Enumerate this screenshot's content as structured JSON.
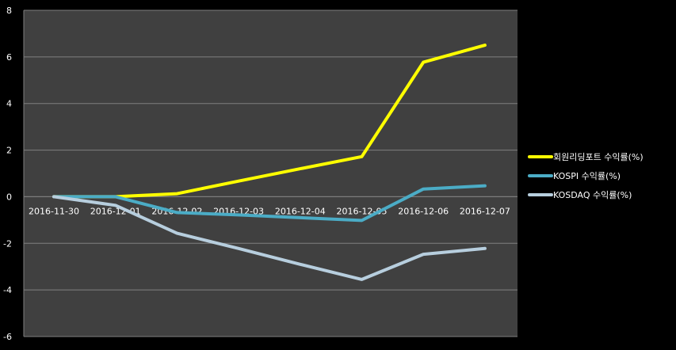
{
  "chart_data": {
    "type": "line",
    "x": [
      "2016-11-30",
      "2016-12-01",
      "2016-12-02",
      "2016-12-03",
      "2016-12-04",
      "2016-12-05",
      "2016-12-06",
      "2016-12-07"
    ],
    "ylim": [
      -6,
      8
    ],
    "yticks": [
      -6,
      -4,
      -2,
      0,
      2,
      4,
      6,
      8
    ],
    "grid": true,
    "legend": "right",
    "series": [
      {
        "name": "회원리딩포트 수익률(%)",
        "color": "#FFFF00",
        "values": [
          0,
          0,
          0.13,
          0.67,
          1.2,
          1.72,
          5.77,
          6.5
        ]
      },
      {
        "name": "KOSPI 수익률(%)",
        "color": "#4BACC6",
        "values": [
          0,
          0,
          -0.68,
          -0.78,
          -0.9,
          -1.02,
          0.33,
          0.47
        ]
      },
      {
        "name": "KOSDAQ 수익률(%)",
        "color": "#B7CEDE",
        "values": [
          0,
          -0.37,
          -1.57,
          -2.22,
          -2.9,
          -3.55,
          -2.47,
          -2.22
        ]
      }
    ]
  },
  "colors": {
    "plot_background": "#404040",
    "page_background": "#000000",
    "gridline": "#7F7F7F",
    "text": "#FFFFFF"
  }
}
